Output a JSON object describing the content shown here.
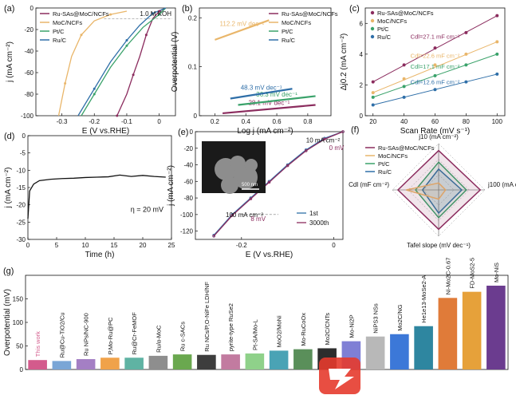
{
  "colors": {
    "ru_sas": "#8b2c5e",
    "moc": "#e9b66a",
    "ptc": "#3aa26a",
    "ruc": "#2f6fa8"
  },
  "chart_data": [
    {
      "panel": "(a)",
      "type": "line",
      "annotation": "1.0 M KOH",
      "xlabel": "E (V vs.RHE)",
      "ylabel": "j (mA cm⁻²)",
      "xlim": [
        -0.38,
        0.05
      ],
      "ylim": [
        -100,
        0
      ],
      "xticks": [
        -0.3,
        -0.2,
        -0.1,
        0.0
      ],
      "yticks": [
        0,
        -20,
        -40,
        -60,
        -80,
        -100
      ],
      "series": [
        {
          "name": "Ru-SAs@MoC/NCFs",
          "color": "#8b2c5e",
          "x": [
            0.02,
            0.0,
            -0.02,
            -0.04,
            -0.06,
            -0.08,
            -0.1,
            -0.13
          ],
          "y": [
            0,
            -3,
            -10,
            -25,
            -45,
            -62,
            -80,
            -100
          ]
        },
        {
          "name": "MoC/NCFs",
          "color": "#e9b66a",
          "x": [
            -0.1,
            -0.15,
            -0.2,
            -0.24,
            -0.27,
            -0.29,
            -0.31
          ],
          "y": [
            -3,
            -6,
            -12,
            -25,
            -45,
            -70,
            -100
          ]
        },
        {
          "name": "Pt/C",
          "color": "#3aa26a",
          "x": [
            0.02,
            0.0,
            -0.05,
            -0.1,
            -0.15,
            -0.2,
            -0.24
          ],
          "y": [
            0,
            -6,
            -18,
            -35,
            -55,
            -80,
            -100
          ]
        },
        {
          "name": "Ru/C",
          "color": "#2f6fa8",
          "x": [
            0.02,
            -0.02,
            -0.06,
            -0.1,
            -0.15,
            -0.2,
            -0.25
          ],
          "y": [
            0,
            -5,
            -16,
            -30,
            -50,
            -75,
            -100
          ]
        }
      ]
    },
    {
      "panel": "(b)",
      "type": "line",
      "xlabel": "Log j (mA cm⁻²)",
      "ylabel": "Overpotential (V)",
      "xlim": [
        0.1,
        0.95
      ],
      "ylim": [
        0.0,
        0.22
      ],
      "xticks": [
        0.2,
        0.4,
        0.6,
        0.8
      ],
      "yticks": [
        0.0,
        0.1,
        0.2
      ],
      "series": [
        {
          "name": "Ru-SAs@MoC/NCFs",
          "color": "#8b2c5e",
          "label": "28.1 mV dec⁻¹",
          "x": [
            0.25,
            0.85
          ],
          "y": [
            0.005,
            0.022
          ]
        },
        {
          "name": "MoC/NCFs",
          "color": "#e9b66a",
          "label": "112.2 mV dec⁻¹",
          "x": [
            0.2,
            0.55
          ],
          "y": [
            0.155,
            0.195
          ]
        },
        {
          "name": "Pt/C",
          "color": "#3aa26a",
          "label": "36.3 mV dec⁻¹",
          "x": [
            0.35,
            0.85
          ],
          "y": [
            0.022,
            0.04
          ]
        },
        {
          "name": "Ru/C",
          "color": "#2f6fa8",
          "label": "48.3 mV dec⁻¹",
          "x": [
            0.3,
            0.7
          ],
          "y": [
            0.035,
            0.055
          ]
        }
      ]
    },
    {
      "panel": "(c)",
      "type": "scatter",
      "xlabel": "Scan Rate (mV s⁻¹)",
      "ylabel": "Δj0.2 (mA cm⁻²)",
      "xlim": [
        15,
        105
      ],
      "ylim": [
        0,
        7
      ],
      "xticks": [
        20,
        40,
        60,
        80,
        100
      ],
      "yticks": [
        0,
        2,
        4,
        6
      ],
      "series": [
        {
          "name": "Ru-SAs@MoC/NCFs",
          "color": "#8b2c5e",
          "label": "Cdl=27.1 mF cm⁻²",
          "x": [
            20,
            40,
            60,
            80,
            100
          ],
          "y": [
            2.2,
            3.3,
            4.4,
            5.4,
            6.5
          ]
        },
        {
          "name": "MoC/NCFs",
          "color": "#e9b66a",
          "label": "Cdl=22.6 mF cm⁻²",
          "x": [
            20,
            40,
            60,
            80,
            100
          ],
          "y": [
            1.5,
            2.4,
            3.3,
            4.0,
            4.8
          ]
        },
        {
          "name": "Pt/C",
          "color": "#3aa26a",
          "label": "Cdl=17.1 mF cm⁻²",
          "x": [
            20,
            40,
            60,
            80,
            100
          ],
          "y": [
            1.2,
            1.9,
            2.6,
            3.3,
            4.0
          ]
        },
        {
          "name": "Ru/C",
          "color": "#2f6fa8",
          "label": "Cdl=12.6 mF cm⁻²",
          "x": [
            20,
            40,
            60,
            80,
            100
          ],
          "y": [
            0.7,
            1.2,
            1.7,
            2.2,
            2.7
          ]
        }
      ]
    },
    {
      "panel": "(d)",
      "type": "line",
      "annotation": "η = 20 mV",
      "xlabel": "Time (h)",
      "ylabel": "j (mA cm⁻²)",
      "xlim": [
        0,
        25
      ],
      "ylim": [
        -30,
        0
      ],
      "xticks": [
        0,
        5,
        10,
        15,
        20,
        25
      ],
      "yticks": [
        0,
        -5,
        -10,
        -15,
        -20,
        -25,
        -30
      ],
      "series": [
        {
          "name": "",
          "color": "#111111",
          "x": [
            0,
            0.3,
            1,
            2,
            4,
            6,
            8,
            10,
            12,
            14,
            16,
            18,
            20,
            22,
            24
          ],
          "y": [
            -24,
            -16,
            -14,
            -13,
            -12.6,
            -12.4,
            -12.3,
            -12.1,
            -12.0,
            -11.9,
            -11.4,
            -11.8,
            -11.5,
            -11.8,
            -12.0
          ]
        }
      ]
    },
    {
      "panel": "(e)",
      "type": "line",
      "xlabel": "E (V vs.RHE)",
      "ylabel": "j (mA cm⁻²)",
      "xlim": [
        -0.3,
        0.02
      ],
      "ylim": [
        -130,
        0
      ],
      "xticks": [
        -0.2,
        0.0
      ],
      "yticks": [
        0,
        -20,
        -40,
        -60,
        -80,
        -100,
        -120
      ],
      "annotations": [
        "10 mA cm⁻²",
        "0 mV",
        "100 mA cm⁻²",
        "8 mV"
      ],
      "inset_scale": "500 nm",
      "series": [
        {
          "name": "1st",
          "color": "#2f6fa8",
          "x": [
            0.02,
            -0.02,
            -0.06,
            -0.1,
            -0.14,
            -0.18,
            -0.22,
            -0.26
          ],
          "y": [
            0,
            -8,
            -22,
            -40,
            -60,
            -80,
            -100,
            -125
          ]
        },
        {
          "name": "3000th",
          "color": "#8b2c5e",
          "x": [
            0.02,
            -0.02,
            -0.06,
            -0.1,
            -0.14,
            -0.18,
            -0.22,
            -0.26
          ],
          "y": [
            0,
            -9,
            -23,
            -41,
            -61,
            -81,
            -101,
            -126
          ]
        }
      ]
    },
    {
      "panel": "(f)",
      "type": "radar",
      "axes": [
        "j10 (mA cm⁻²)",
        "j100 (mA cm⁻²)",
        "Tafel slope (mV dec⁻¹)",
        "Cdl (mF cm⁻²)"
      ],
      "series": [
        {
          "name": "Ru-SAs@MoC/NCFs",
          "color": "#8b2c5e",
          "values": [
            0.85,
            0.9,
            0.85,
            0.88
          ]
        },
        {
          "name": "MoC/NCFs",
          "color": "#e9b66a",
          "values": [
            0.15,
            0.15,
            0.2,
            0.7
          ]
        },
        {
          "name": "Pt/C",
          "color": "#3aa26a",
          "values": [
            0.6,
            0.6,
            0.6,
            0.5
          ]
        },
        {
          "name": "Ru/C",
          "color": "#2f6fa8",
          "values": [
            0.45,
            0.5,
            0.5,
            0.35
          ]
        }
      ]
    },
    {
      "panel": "(g)",
      "type": "bar",
      "ylabel": "Overpotential (mV)",
      "ylim": [
        0,
        200
      ],
      "yticks": [
        0,
        50,
        100,
        150
      ],
      "categories": [
        "This work",
        "Ru@Cu-TiO2/Cu",
        "Ru NPs/NC-900",
        "P,Mo-Ru@PC",
        "Ru@Cr-FeMOF",
        "Ru/α-MoC",
        "Ru c-SACs",
        "Ru NCs/P,O-NiFe LDH/NF",
        "pyrite-type RuSe2",
        "Pt-SA/Mo-L",
        "MoO2/MoNi",
        "Mo-RuCoOx",
        "Mo2C/CNTs",
        "Mo-Ni2P",
        "NiPS3 NSs",
        "Mo2C/NG",
        "He1e13-MoSe2-A",
        "Ni-Mo2C-0.67",
        "FD-MoS2-5",
        "Mo-NiS"
      ],
      "values": [
        20,
        18,
        22,
        25,
        25,
        29,
        32,
        31,
        32,
        34,
        40,
        43,
        45,
        60,
        70,
        75,
        92,
        152,
        165,
        178
      ]
    }
  ]
}
